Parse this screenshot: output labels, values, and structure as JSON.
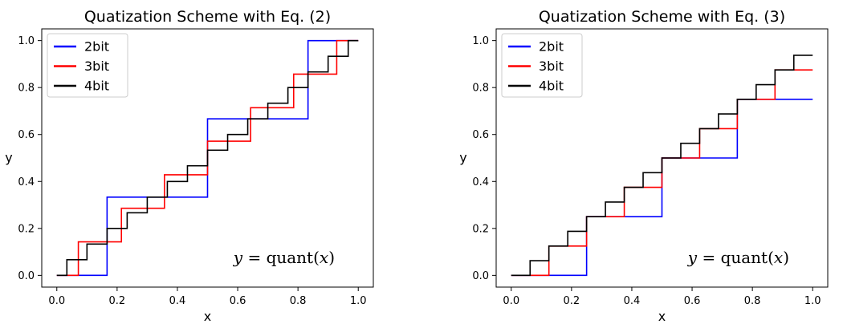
{
  "chart_data": [
    {
      "type": "line",
      "title": "Quatization Scheme with Eq. (2)",
      "xlabel": "x",
      "ylabel": "y",
      "xlim": [
        -0.05,
        1.05
      ],
      "ylim": [
        -0.05,
        1.05
      ],
      "xticks": [
        "0.0",
        "0.2",
        "0.4",
        "0.6",
        "0.8",
        "1.0"
      ],
      "yticks": [
        "0.0",
        "0.2",
        "0.4",
        "0.6",
        "0.8",
        "1.0"
      ],
      "legend_position": "top-left",
      "annotation": {
        "italic_y": "y",
        "eq": " = quant(",
        "italic_x": "x",
        "close": ")"
      },
      "series": [
        {
          "name": "2bit",
          "color": "#0000ff",
          "levels": 3,
          "rule": "eq2"
        },
        {
          "name": "3bit",
          "color": "#ff0000",
          "levels": 7,
          "rule": "eq2"
        },
        {
          "name": "4bit",
          "color": "#000000",
          "levels": 15,
          "rule": "eq2"
        }
      ]
    },
    {
      "type": "line",
      "title": "Quatization Scheme with Eq. (3)",
      "xlabel": "x",
      "ylabel": "y",
      "xlim": [
        -0.05,
        1.05
      ],
      "ylim": [
        -0.05,
        1.05
      ],
      "xticks": [
        "0.0",
        "0.2",
        "0.4",
        "0.6",
        "0.8",
        "1.0"
      ],
      "yticks": [
        "0.0",
        "0.2",
        "0.4",
        "0.6",
        "0.8",
        "1.0"
      ],
      "legend_position": "top-left",
      "annotation": {
        "italic_y": "y",
        "eq": " = quant(",
        "italic_x": "x",
        "close": ")"
      },
      "series": [
        {
          "name": "2bit",
          "color": "#0000ff",
          "levels": 4,
          "rule": "eq3"
        },
        {
          "name": "3bit",
          "color": "#ff0000",
          "levels": 8,
          "rule": "eq3"
        },
        {
          "name": "4bit",
          "color": "#000000",
          "levels": 16,
          "rule": "eq3"
        }
      ]
    }
  ]
}
